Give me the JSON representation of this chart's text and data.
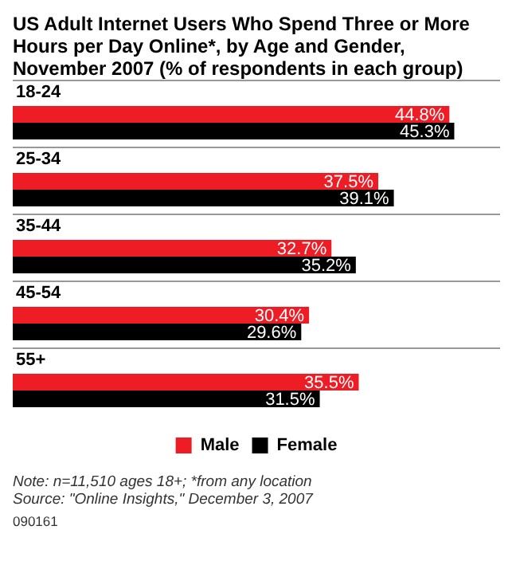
{
  "chart_data": {
    "type": "bar",
    "orientation": "horizontal",
    "title": "US Adult Internet Users Who Spend Three or More Hours per Day Online*, by Age and Gender, November 2007 (% of respondents in each group)",
    "categories": [
      "18-24",
      "25-34",
      "35-44",
      "45-54",
      "55+"
    ],
    "series": [
      {
        "name": "Male",
        "color": "#ee1c25",
        "values": [
          44.8,
          37.5,
          32.7,
          30.4,
          35.5
        ],
        "value_labels": [
          "44.8%",
          "37.5%",
          "32.7%",
          "30.4%",
          "35.5%"
        ]
      },
      {
        "name": "Female",
        "color": "#000000",
        "values": [
          45.3,
          39.1,
          35.2,
          29.6,
          31.5
        ],
        "value_labels": [
          "45.3%",
          "39.1%",
          "35.2%",
          "29.6%",
          "31.5%"
        ]
      }
    ],
    "legend": "bottom",
    "annotations": [
      "Note: n=11,510 ages 18+; *from any location",
      "Source: \"Online Insights,\" December 3, 2007",
      "090161"
    ]
  }
}
